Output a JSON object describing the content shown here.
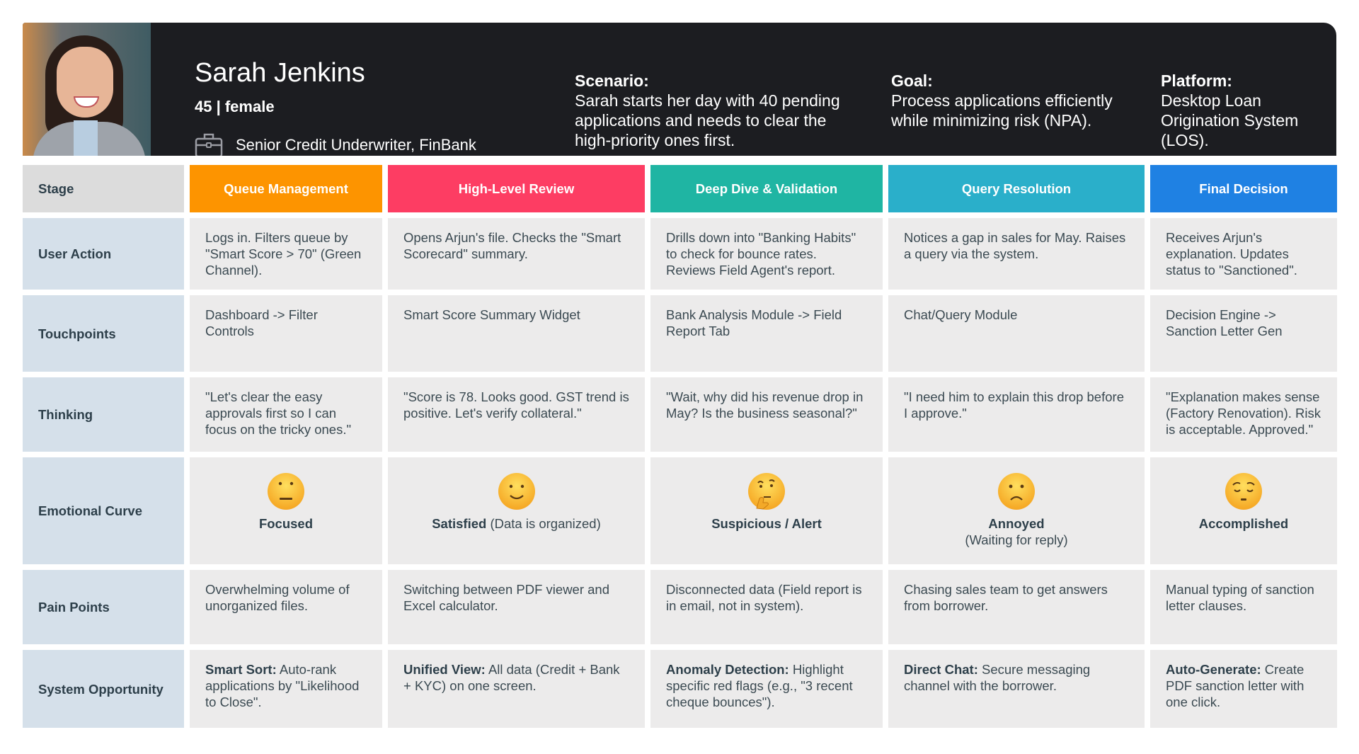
{
  "persona": {
    "name": "Sarah Jenkins",
    "age_gender": "45 | female",
    "role": "Senior Credit Underwriter, FinBank",
    "role_icon": "briefcase-icon",
    "scenario_title": "Scenario:",
    "scenario_text": "Sarah starts her day with 40 pending applications and needs to clear the high-priority ones first.",
    "goal_title": "Goal:",
    "goal_text": "Process applications efficiently while minimizing risk (NPA).",
    "platform_title": "Platform:",
    "platform_text": "Desktop Loan Origination System (LOS)."
  },
  "stage_label": "Stage",
  "stages": [
    {
      "label": "Queue Management",
      "color": "#fd9400"
    },
    {
      "label": "High-Level Review",
      "color": "#fd3d63"
    },
    {
      "label": "Deep Dive & Validation",
      "color": "#1fb5a3"
    },
    {
      "label": "Query Resolution",
      "color": "#2aafca"
    },
    {
      "label": "Final Decision",
      "color": "#1f81e3"
    }
  ],
  "rows": {
    "user_action": {
      "label": "User Action",
      "cells": [
        "Logs in. Filters queue by \"Smart Score > 70\" (Green Channel).",
        "Opens Arjun's file. Checks the \"Smart Scorecard\" summary.",
        "Drills down into \"Banking Habits\" to check for bounce rates. Reviews Field Agent's report.",
        "Notices a gap in sales for May. Raises a query via the system.",
        "Receives Arjun's explanation. Updates status to \"Sanctioned\"."
      ]
    },
    "touchpoints": {
      "label": "Touchpoints",
      "cells": [
        "Dashboard -> Filter Controls",
        "Smart Score Summary Widget",
        "Bank Analysis Module -> Field Report Tab",
        "Chat/Query Module",
        "Decision Engine -> Sanction Letter Gen"
      ]
    },
    "thinking": {
      "label": "Thinking",
      "cells": [
        "\"Let's clear the easy approvals first so I can focus on the tricky ones.\"",
        "\"Score is 78. Looks good. GST trend is positive. Let's verify collateral.\"",
        "\"Wait, why did his revenue drop in May? Is the business seasonal?\"",
        "\"I need him to explain this drop before I approve.\"",
        "\"Explanation makes sense (Factory Renovation). Risk is acceptable. Approved.\""
      ]
    },
    "emotional_curve": {
      "label": "Emotional Curve",
      "cells": [
        {
          "emoji": "neutral-face-icon",
          "emotion": "Focused",
          "note": ""
        },
        {
          "emoji": "slightly-smiling-face-icon",
          "emotion": "Satisfied",
          "note": " (Data is organized)"
        },
        {
          "emoji": "thinking-face-icon",
          "emotion": "Suspicious / Alert",
          "note": ""
        },
        {
          "emoji": "frowning-face-icon",
          "emotion": "Annoyed",
          "note": "(Waiting for reply)"
        },
        {
          "emoji": "pensive-face-icon",
          "emotion": "Accomplished",
          "note": ""
        }
      ]
    },
    "pain_points": {
      "label": "Pain Points",
      "cells": [
        "Overwhelming volume of unorganized files.",
        "Switching between PDF viewer and Excel calculator.",
        "Disconnected data (Field report is in email, not in system).",
        "Chasing sales team to get answers from borrower.",
        "Manual typing of sanction letter clauses."
      ]
    },
    "system_opportunity": {
      "label": "System Opportunity",
      "cells": [
        {
          "title": "Smart Sort:",
          "text": " Auto-rank applications by \"Likelihood to Close\"."
        },
        {
          "title": "Unified View:",
          "text": " All data (Credit + Bank + KYC) on one screen."
        },
        {
          "title": "Anomaly Detection:",
          "text": " Highlight specific red flags (e.g., \"3 recent cheque bounces\")."
        },
        {
          "title": "Direct Chat:",
          "text": " Secure messaging channel with the borrower."
        },
        {
          "title": "Auto-Generate:",
          "text": " Create PDF sanction letter with one click."
        }
      ]
    }
  }
}
